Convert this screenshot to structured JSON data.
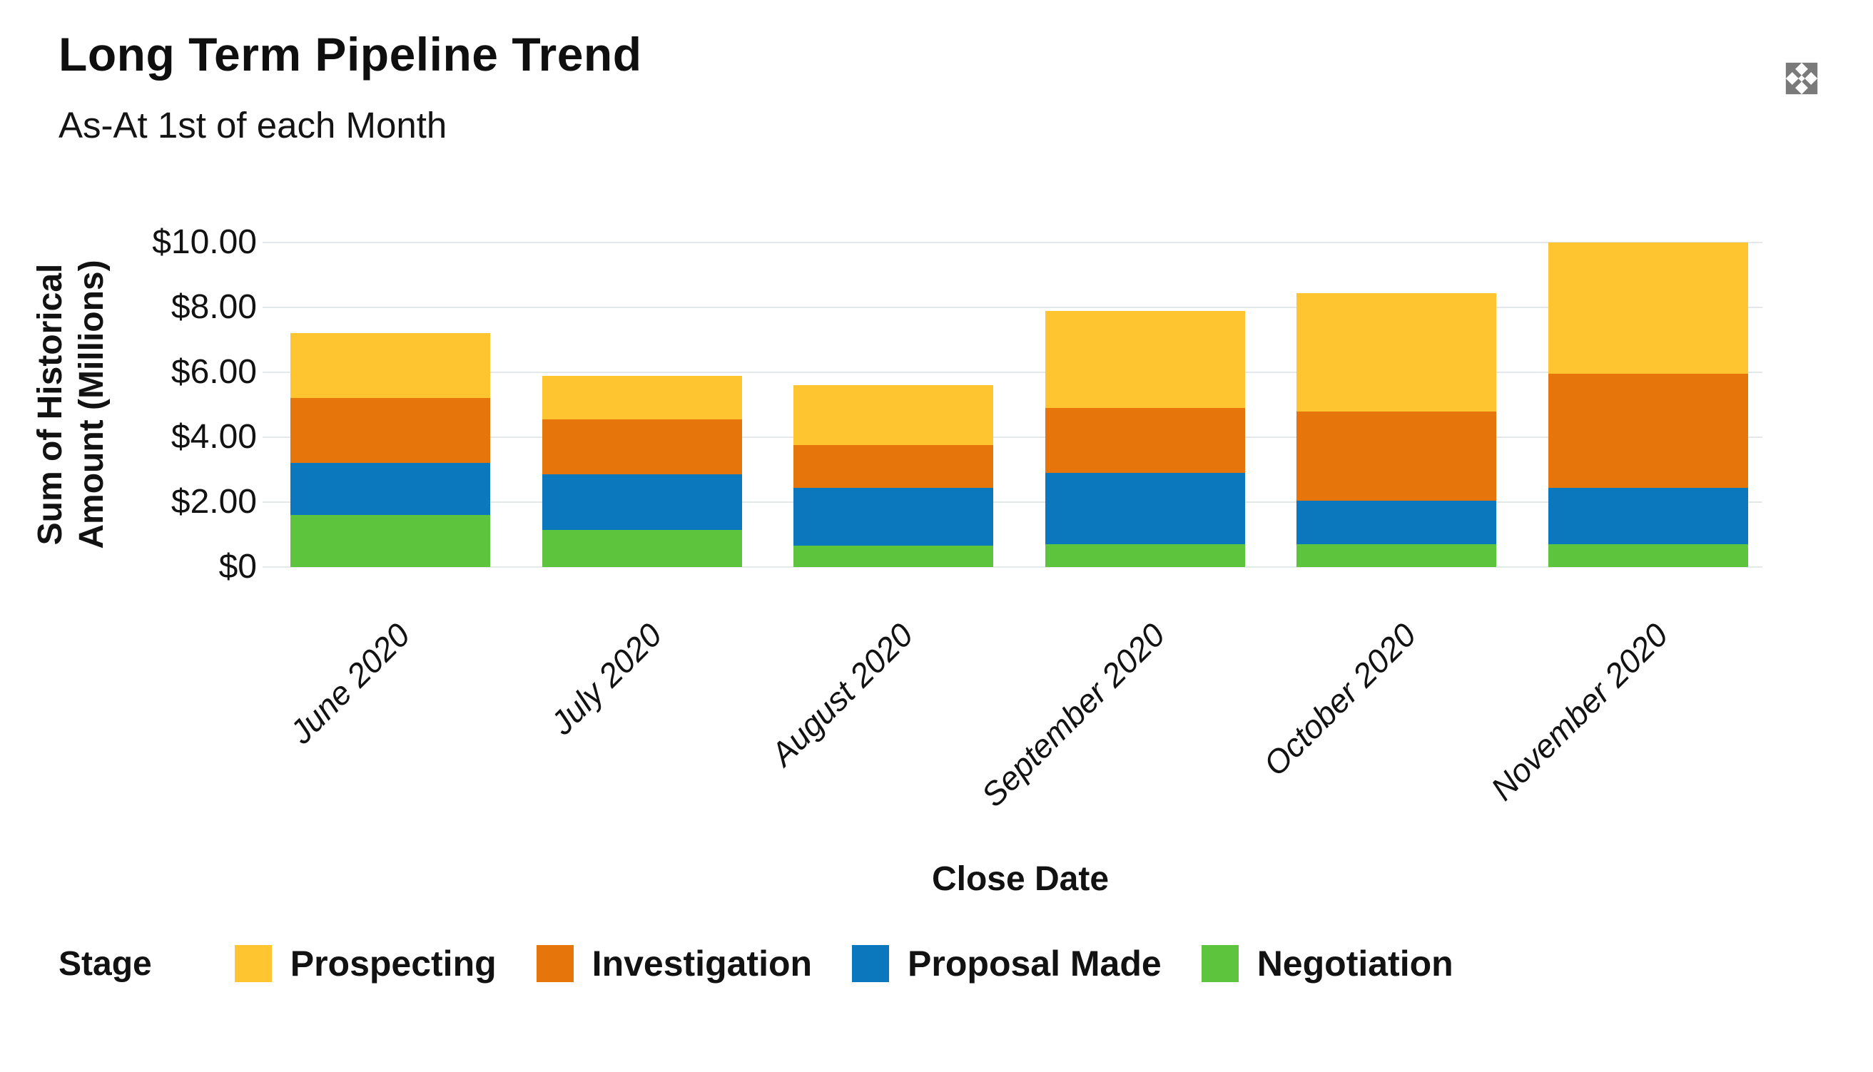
{
  "header": {
    "title": "Long Term Pipeline Trend",
    "subtitle": "As-At 1st of each Month"
  },
  "legend": {
    "title": "Stage"
  },
  "chart_data": {
    "type": "bar",
    "stacked": true,
    "title": "Long Term Pipeline Trend",
    "subtitle": "As-At 1st of each Month",
    "xlabel": "Close Date",
    "ylabel": "Sum of Historical Amount (Millions)",
    "ylabel_lines": [
      "Sum of Historical",
      "Amount (Millions)"
    ],
    "ylim": [
      0,
      10
    ],
    "grid": true,
    "legend_position": "bottom",
    "yticks": [
      {
        "value": 10,
        "label": "$10.00"
      },
      {
        "value": 8,
        "label": "$8.00"
      },
      {
        "value": 6,
        "label": "$6.00"
      },
      {
        "value": 4,
        "label": "$4.00"
      },
      {
        "value": 2,
        "label": "$2.00"
      },
      {
        "value": 0,
        "label": "$0"
      }
    ],
    "categories": [
      "June 2020",
      "July 2020",
      "August 2020",
      "September 2020",
      "October 2020",
      "November 2020"
    ],
    "series": [
      {
        "name": "Prospecting",
        "color": "#FFC531",
        "values": [
          2.0,
          1.35,
          1.85,
          3.0,
          3.65,
          4.05
        ]
      },
      {
        "name": "Investigation",
        "color": "#E6750B",
        "values": [
          2.0,
          1.7,
          1.3,
          2.0,
          2.75,
          3.5
        ]
      },
      {
        "name": "Proposal Made",
        "color": "#0B77BD",
        "values": [
          1.6,
          1.7,
          1.8,
          2.2,
          1.35,
          1.75
        ]
      },
      {
        "name": "Negotiation",
        "color": "#5DC43D",
        "values": [
          1.6,
          1.15,
          0.65,
          0.7,
          0.7,
          0.7
        ]
      }
    ],
    "stack_order_bottom_to_top": [
      "Negotiation",
      "Proposal Made",
      "Investigation",
      "Prospecting"
    ],
    "totals": [
      7.2,
      5.9,
      5.6,
      7.9,
      8.45,
      10.0
    ]
  },
  "colors": {
    "background": "#FFFFFF",
    "gridline": "#E3E9EA",
    "text": "#121212",
    "expand_icon": "#7A7A7A"
  }
}
